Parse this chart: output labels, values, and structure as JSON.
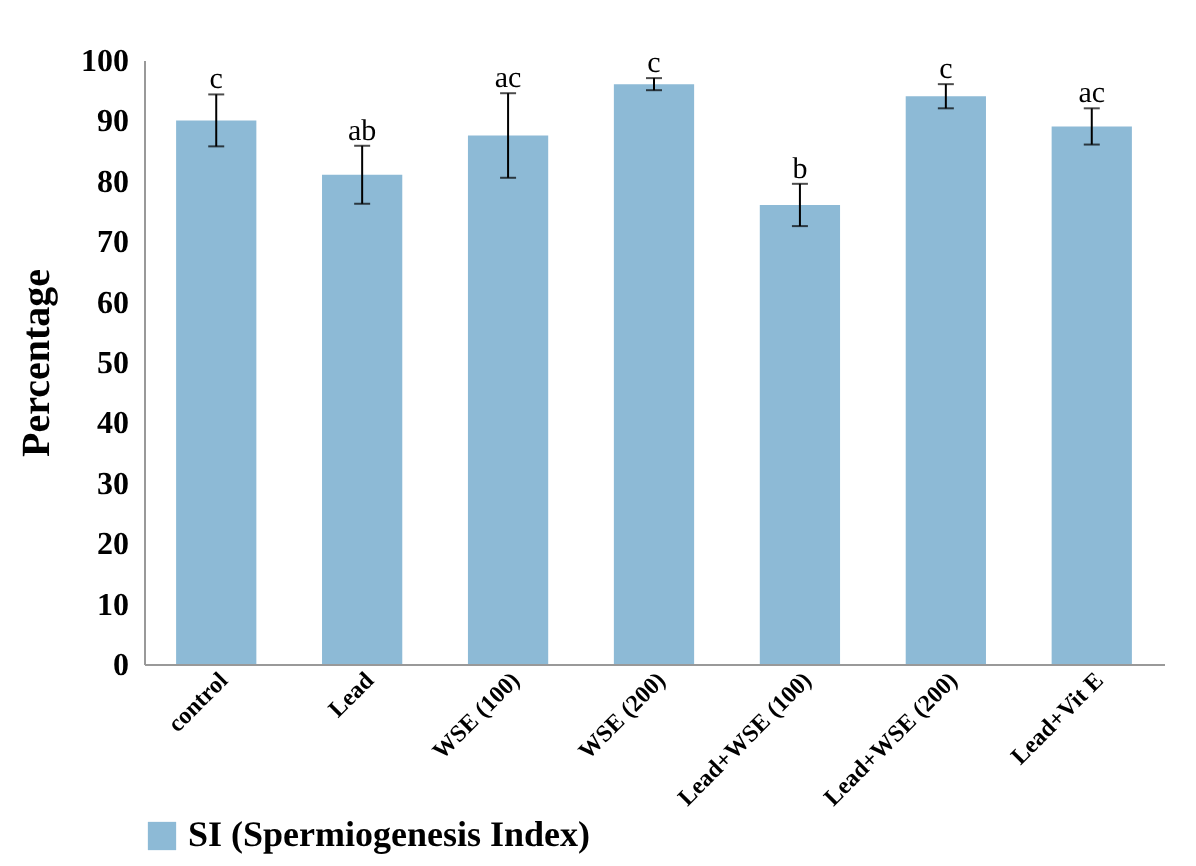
{
  "chart_data": {
    "type": "bar",
    "ylabel": "Percentage",
    "categories": [
      "control",
      "Lead",
      "WSE (100)",
      "WSE (200)",
      "Lead+WSE (100)",
      "Lead+WSE (200)",
      "Lead+Vit E"
    ],
    "series": [
      {
        "name": "SI (Spermiogenesis Index)",
        "color": "#8dbad6",
        "values": [
          90,
          81,
          87.5,
          96,
          76,
          94,
          89
        ],
        "errors": [
          4.3,
          4.8,
          7,
          1,
          3.5,
          2,
          3
        ]
      }
    ],
    "annotations": [
      {
        "text": "c",
        "x": "control",
        "y": 94.3
      },
      {
        "text": "ab",
        "x": "Lead",
        "y": 85.8
      },
      {
        "text": "ac",
        "x": "WSE (100)",
        "y": 94.5
      },
      {
        "text": "c",
        "x": "WSE (200)",
        "y": 97
      },
      {
        "text": "b",
        "x": "Lead+WSE (100)",
        "y": 79.5
      },
      {
        "text": "c",
        "x": "Lead+WSE (200)",
        "y": 96
      },
      {
        "text": "ac",
        "x": "Lead+Vit E",
        "y": 92
      }
    ],
    "ylim": [
      0,
      100
    ],
    "yticks": [
      0,
      10,
      20,
      30,
      40,
      50,
      60,
      70,
      80,
      90,
      100
    ],
    "grid": false,
    "legend": "bottom"
  }
}
